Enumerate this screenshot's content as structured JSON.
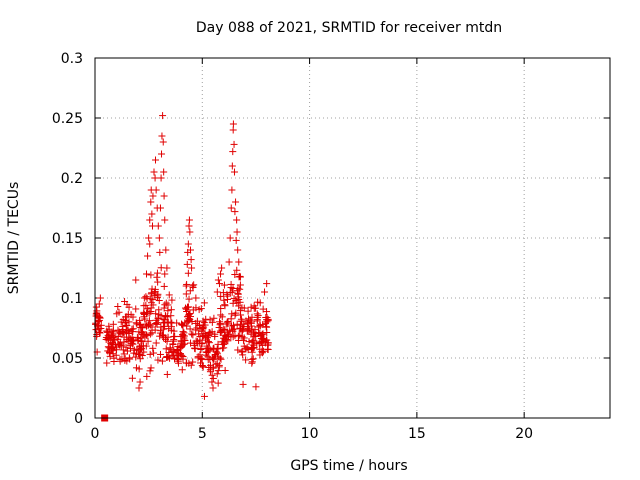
{
  "chart_data": {
    "type": "scatter",
    "title": "Day 088 of 2021, SRMTID for receiver mtdn",
    "xlabel": "GPS time / hours",
    "ylabel": "SRMTID / TECUs",
    "xlim": [
      0,
      24
    ],
    "ylim": [
      0,
      0.3
    ],
    "xticks": [
      0,
      5,
      10,
      15,
      20
    ],
    "yticks": [
      0,
      0.05,
      0.1,
      0.15,
      0.2,
      0.25,
      0.3
    ],
    "ytick_labels": [
      "0",
      "0.05",
      "0.1",
      "0.15",
      "0.2",
      "0.25",
      "0.3"
    ],
    "grid": true,
    "marker": "+",
    "color": "#e00000",
    "special_marker": {
      "shape": "square",
      "x": 0.45,
      "y": 0.0
    },
    "segments": [
      {
        "x0": 0.0,
        "x1": 0.3,
        "base": 0.078,
        "spread": 0.012
      },
      {
        "x0": 0.5,
        "x1": 1.0,
        "base": 0.062,
        "spread": 0.012
      },
      {
        "x0": 1.0,
        "x1": 1.6,
        "base": 0.072,
        "spread": 0.02
      },
      {
        "x0": 1.6,
        "x1": 2.2,
        "base": 0.062,
        "spread": 0.02
      },
      {
        "x0": 2.2,
        "x1": 2.6,
        "base": 0.08,
        "spread": 0.03
      },
      {
        "x0": 2.6,
        "x1": 3.1,
        "base": 0.085,
        "spread": 0.035
      },
      {
        "x0": 3.1,
        "x1": 3.6,
        "base": 0.075,
        "spread": 0.025
      },
      {
        "x0": 3.6,
        "x1": 4.2,
        "base": 0.062,
        "spread": 0.015
      },
      {
        "x0": 4.2,
        "x1": 4.6,
        "base": 0.085,
        "spread": 0.03
      },
      {
        "x0": 4.6,
        "x1": 5.2,
        "base": 0.068,
        "spread": 0.02
      },
      {
        "x0": 5.2,
        "x1": 5.8,
        "base": 0.055,
        "spread": 0.02
      },
      {
        "x0": 5.8,
        "x1": 6.3,
        "base": 0.072,
        "spread": 0.025
      },
      {
        "x0": 6.3,
        "x1": 6.8,
        "base": 0.09,
        "spread": 0.03
      },
      {
        "x0": 6.8,
        "x1": 7.4,
        "base": 0.065,
        "spread": 0.02
      },
      {
        "x0": 7.4,
        "x1": 8.1,
        "base": 0.07,
        "spread": 0.022
      }
    ],
    "points": [
      [
        2.4,
        0.12
      ],
      [
        2.45,
        0.135
      ],
      [
        2.5,
        0.15
      ],
      [
        2.55,
        0.165
      ],
      [
        2.6,
        0.18
      ],
      [
        2.62,
        0.19
      ],
      [
        2.65,
        0.17
      ],
      [
        2.7,
        0.185
      ],
      [
        2.75,
        0.205
      ],
      [
        2.8,
        0.2
      ],
      [
        2.82,
        0.215
      ],
      [
        2.85,
        0.19
      ],
      [
        2.9,
        0.175
      ],
      [
        2.95,
        0.16
      ],
      [
        3.0,
        0.15
      ],
      [
        3.05,
        0.175
      ],
      [
        3.08,
        0.2
      ],
      [
        3.1,
        0.22
      ],
      [
        3.12,
        0.235
      ],
      [
        3.15,
        0.252
      ],
      [
        3.18,
        0.23
      ],
      [
        3.2,
        0.205
      ],
      [
        3.22,
        0.185
      ],
      [
        3.25,
        0.165
      ],
      [
        3.3,
        0.14
      ],
      [
        3.35,
        0.125
      ],
      [
        2.3,
        0.1
      ],
      [
        2.55,
        0.145
      ],
      [
        2.68,
        0.16
      ],
      [
        3.02,
        0.138
      ],
      [
        3.25,
        0.12
      ],
      [
        4.25,
        0.11
      ],
      [
        4.3,
        0.128
      ],
      [
        4.35,
        0.145
      ],
      [
        4.38,
        0.16
      ],
      [
        4.4,
        0.165
      ],
      [
        4.42,
        0.155
      ],
      [
        4.45,
        0.14
      ],
      [
        4.5,
        0.125
      ],
      [
        4.55,
        0.11
      ],
      [
        4.32,
        0.138
      ],
      [
        4.48,
        0.132
      ],
      [
        6.25,
        0.13
      ],
      [
        6.3,
        0.15
      ],
      [
        6.35,
        0.175
      ],
      [
        6.38,
        0.19
      ],
      [
        6.4,
        0.21
      ],
      [
        6.42,
        0.222
      ],
      [
        6.44,
        0.24
      ],
      [
        6.45,
        0.245
      ],
      [
        6.48,
        0.228
      ],
      [
        6.5,
        0.205
      ],
      [
        6.55,
        0.18
      ],
      [
        6.6,
        0.165
      ],
      [
        6.62,
        0.155
      ],
      [
        6.65,
        0.14
      ],
      [
        6.7,
        0.13
      ],
      [
        6.75,
        0.118
      ],
      [
        6.52,
        0.172
      ],
      [
        6.58,
        0.148
      ],
      [
        5.7,
        0.105
      ],
      [
        5.75,
        0.115
      ],
      [
        5.8,
        0.112
      ],
      [
        5.85,
        0.12
      ],
      [
        5.9,
        0.125
      ],
      [
        5.45,
        0.03
      ],
      [
        5.5,
        0.025
      ],
      [
        5.1,
        0.018
      ],
      [
        6.9,
        0.028
      ],
      [
        7.5,
        0.026
      ],
      [
        2.05,
        0.025
      ],
      [
        2.1,
        0.03
      ],
      [
        4.7,
        0.1
      ],
      [
        7.9,
        0.105
      ],
      [
        8.0,
        0.112
      ],
      [
        1.9,
        0.115
      ],
      [
        0.2,
        0.095
      ],
      [
        0.25,
        0.1
      ],
      [
        0.1,
        0.055
      ],
      [
        0.05,
        0.085
      ]
    ]
  }
}
